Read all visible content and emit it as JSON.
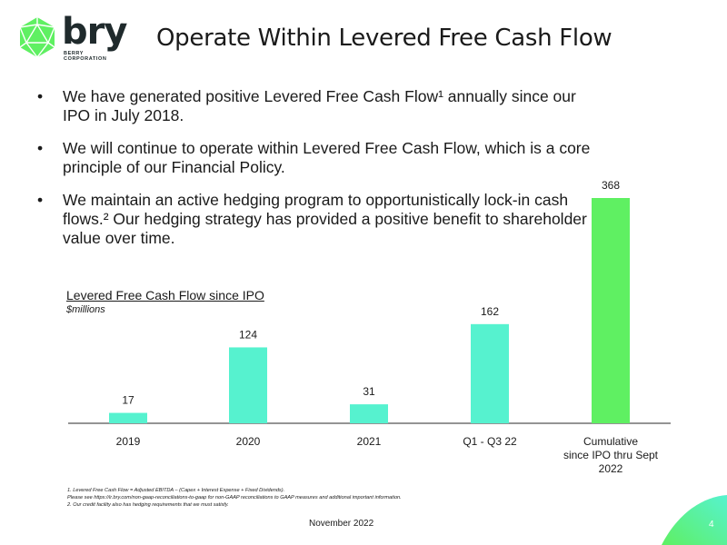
{
  "brand": {
    "wordmark": "bry",
    "tm": "®",
    "sub_line1": "BERRY",
    "sub_line2": "CORPORATION"
  },
  "title": "Operate Within Levered Free Cash Flow",
  "bullets": [
    "We have generated positive Levered Free Cash Flow¹ annually since our IPO in July 2018.",
    "We will continue to operate within Levered Free Cash Flow, which is a core principle of our Financial Policy.",
    "We maintain an active hedging program to opportunistically lock-in cash flows.²  Our hedging strategy has provided a positive benefit to shareholder value over time."
  ],
  "chart_data": {
    "type": "bar",
    "title": "Levered Free Cash Flow since IPO",
    "subtitle": "$millions",
    "categories": [
      "2019",
      "2020",
      "2021",
      "Q1 - Q3 22",
      "Cumulative since IPO thru Sept 2022"
    ],
    "category_lines": [
      [
        "2019"
      ],
      [
        "2020"
      ],
      [
        "2021"
      ],
      [
        "Q1 - Q3 22"
      ],
      [
        "Cumulative",
        "since IPO thru Sept",
        "2022"
      ]
    ],
    "values": [
      17,
      124,
      31,
      162,
      368
    ],
    "data_labels": [
      "17",
      "124",
      "31",
      "162",
      "368"
    ],
    "ylim": [
      0,
      368
    ],
    "colors": [
      "#56f2cf",
      "#56f2cf",
      "#56f2cf",
      "#56f2cf",
      "#5ff062"
    ],
    "grid": false
  },
  "footnotes": {
    "line1": "1. Levered Free Cash Flow = Adjusted EBITDA – (Capex + Interest Expense + Fixed Dividends).",
    "line2": "Please see https://ir.bry.com/non-gaap-reconciliations-to-gaap  for non-GAAP reconciliations to GAAP measures and additional important information.",
    "line3": "2. Our credit facility also has hedging requirements that we must satisfy."
  },
  "date": "November 2022",
  "page_number": "4",
  "colors": {
    "brand_green": "#5ff062",
    "bar_teal": "#56f2cf"
  }
}
